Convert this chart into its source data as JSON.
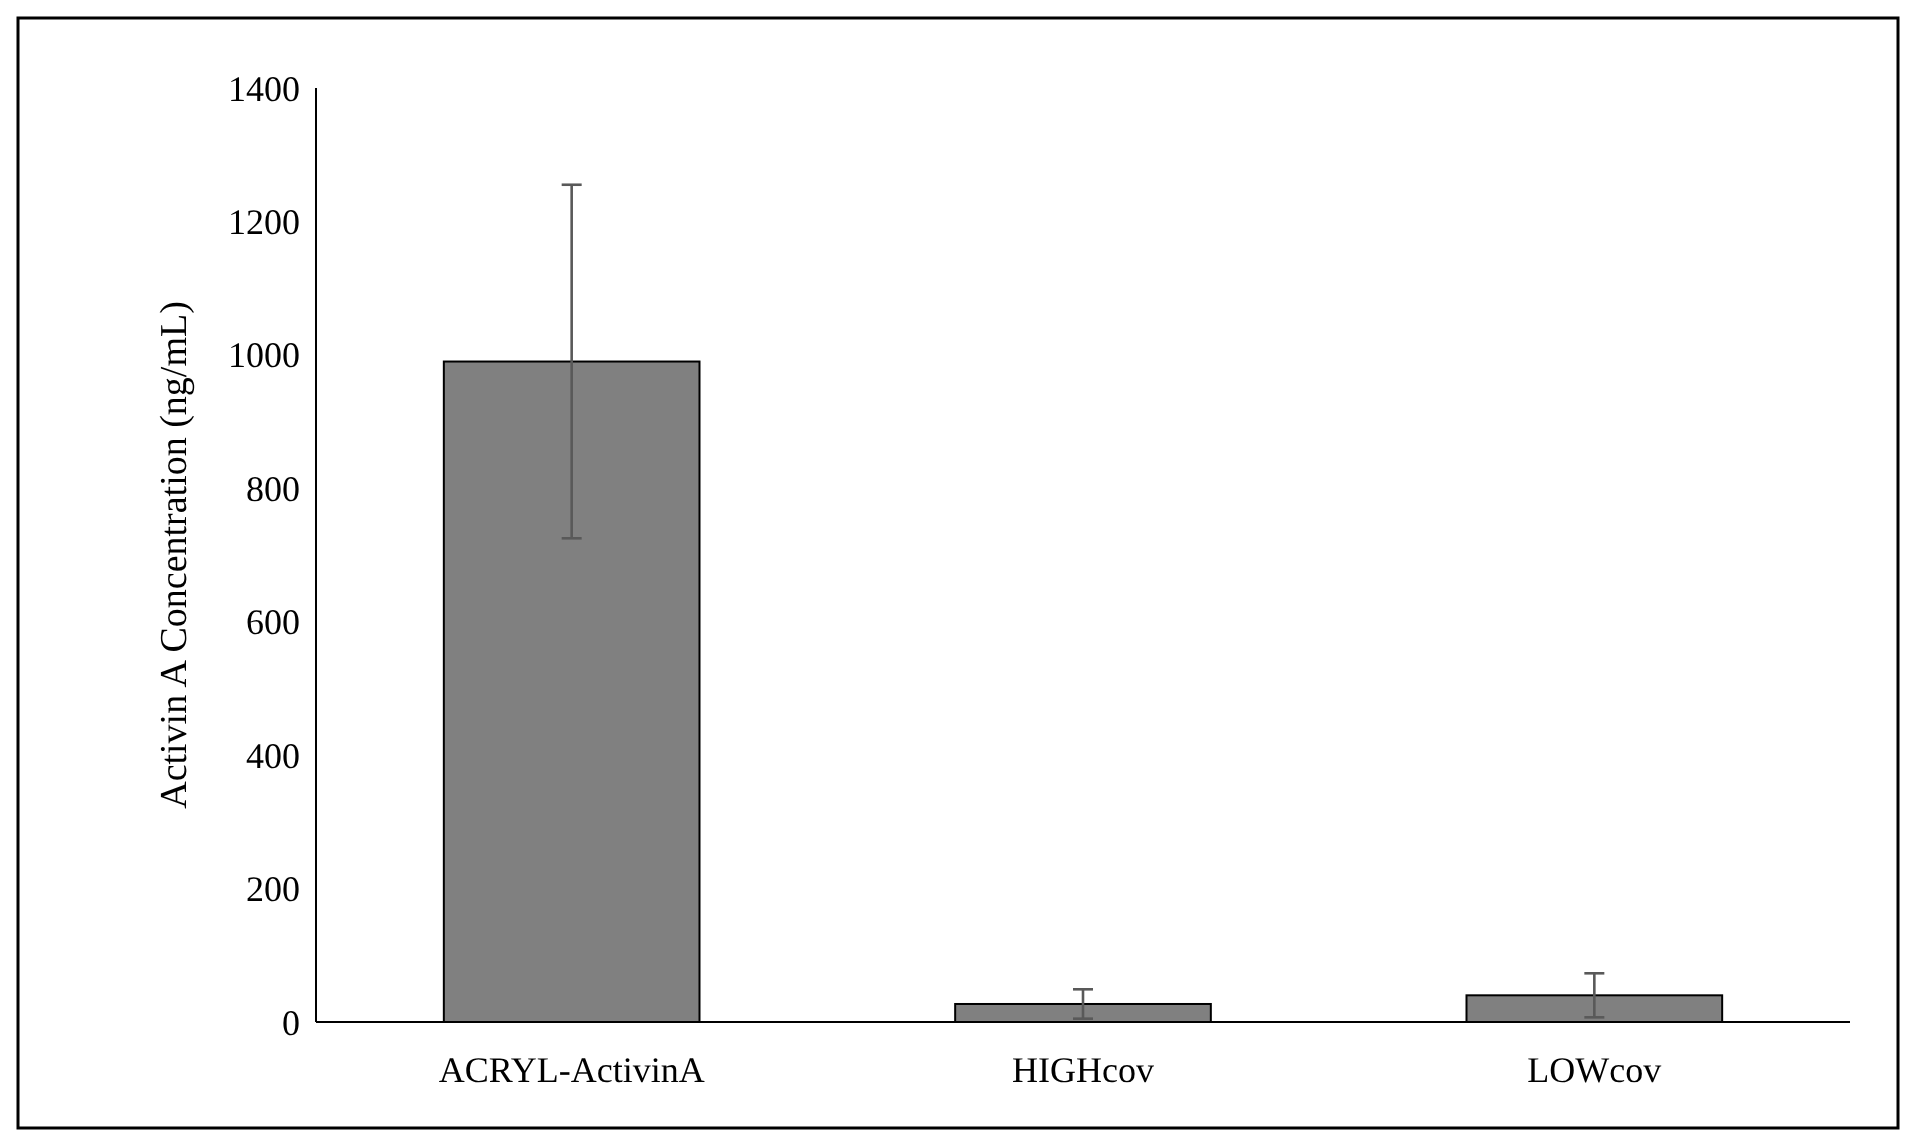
{
  "chart_data": {
    "type": "bar",
    "ylabel": "Activin A Concentration (ng/mL)",
    "categories": [
      "ACRYL-ActivinA",
      "HIGHcov",
      "LOWcov"
    ],
    "values": [
      990,
      27,
      40
    ],
    "errors": [
      265,
      22,
      33
    ],
    "color": "#808080",
    "ylim": [
      0,
      1400
    ],
    "yticks": [
      0,
      200,
      400,
      600,
      800,
      1000,
      1200,
      1400
    ],
    "grid": false
  }
}
